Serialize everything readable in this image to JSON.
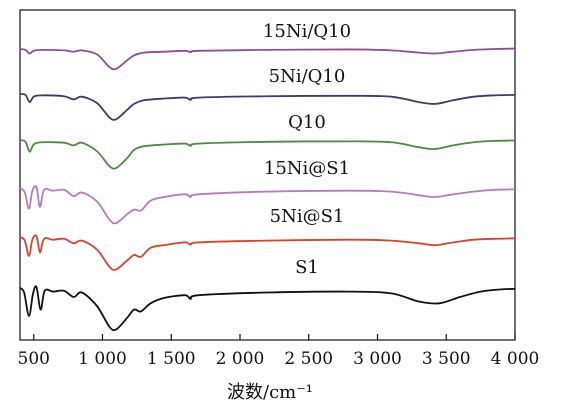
{
  "chart_data": {
    "type": "line",
    "xlabel": "波数/cm⁻¹",
    "ylabel": "",
    "xlim": [
      400,
      4000
    ],
    "xticks": [
      500,
      1000,
      1500,
      2000,
      2500,
      3000,
      3500,
      4000
    ],
    "xtick_labels": [
      "500",
      "1 000",
      "1 500",
      "2 000",
      "2 500",
      "3 000",
      "3 500",
      "4 000"
    ],
    "yticks_visible": false,
    "grid": false,
    "legend": "none",
    "series": [
      {
        "name": "15Ni/Q10",
        "color": "#8e4f94",
        "points": [
          [
            400,
            0.0
          ],
          [
            440,
            -0.02
          ],
          [
            470,
            -0.1
          ],
          [
            500,
            -0.04
          ],
          [
            560,
            -0.02
          ],
          [
            720,
            -0.03
          ],
          [
            790,
            -0.06
          ],
          [
            850,
            -0.03
          ],
          [
            960,
            -0.12
          ],
          [
            1050,
            -0.4
          ],
          [
            1100,
            -0.44
          ],
          [
            1180,
            -0.25
          ],
          [
            1230,
            -0.14
          ],
          [
            1300,
            -0.08
          ],
          [
            1450,
            -0.06
          ],
          [
            1600,
            -0.04
          ],
          [
            1640,
            -0.07
          ],
          [
            1700,
            -0.04
          ],
          [
            2200,
            -0.02
          ],
          [
            2800,
            -0.01
          ],
          [
            3100,
            -0.03
          ],
          [
            3300,
            -0.08
          ],
          [
            3420,
            -0.1
          ],
          [
            3550,
            -0.06
          ],
          [
            3700,
            -0.02
          ],
          [
            3850,
            0.0
          ],
          [
            4000,
            0.01
          ]
        ]
      },
      {
        "name": "5Ni/Q10",
        "color": "#3d3d6b",
        "points": [
          [
            400,
            0.0
          ],
          [
            440,
            -0.02
          ],
          [
            470,
            -0.18
          ],
          [
            500,
            -0.06
          ],
          [
            560,
            -0.03
          ],
          [
            720,
            -0.05
          ],
          [
            790,
            -0.12
          ],
          [
            850,
            -0.06
          ],
          [
            960,
            -0.2
          ],
          [
            1050,
            -0.52
          ],
          [
            1100,
            -0.56
          ],
          [
            1180,
            -0.35
          ],
          [
            1230,
            -0.22
          ],
          [
            1300,
            -0.14
          ],
          [
            1450,
            -0.1
          ],
          [
            1600,
            -0.08
          ],
          [
            1640,
            -0.13
          ],
          [
            1700,
            -0.08
          ],
          [
            2200,
            -0.05
          ],
          [
            2800,
            -0.04
          ],
          [
            3100,
            -0.06
          ],
          [
            3300,
            -0.18
          ],
          [
            3420,
            -0.22
          ],
          [
            3550,
            -0.14
          ],
          [
            3700,
            -0.06
          ],
          [
            3850,
            -0.03
          ],
          [
            4000,
            -0.02
          ]
        ]
      },
      {
        "name": "Q10",
        "color": "#4e8a45",
        "points": [
          [
            400,
            0.0
          ],
          [
            440,
            -0.04
          ],
          [
            470,
            -0.26
          ],
          [
            500,
            -0.1
          ],
          [
            560,
            -0.05
          ],
          [
            720,
            -0.06
          ],
          [
            790,
            -0.12
          ],
          [
            850,
            -0.06
          ],
          [
            960,
            -0.25
          ],
          [
            1050,
            -0.58
          ],
          [
            1100,
            -0.62
          ],
          [
            1180,
            -0.4
          ],
          [
            1230,
            -0.22
          ],
          [
            1300,
            -0.14
          ],
          [
            1450,
            -0.1
          ],
          [
            1600,
            -0.08
          ],
          [
            1640,
            -0.13
          ],
          [
            1700,
            -0.08
          ],
          [
            2200,
            -0.04
          ],
          [
            2800,
            -0.03
          ],
          [
            3100,
            -0.05
          ],
          [
            3300,
            -0.16
          ],
          [
            3420,
            -0.2
          ],
          [
            3550,
            -0.12
          ],
          [
            3700,
            -0.05
          ],
          [
            3850,
            -0.02
          ],
          [
            4000,
            -0.01
          ]
        ]
      },
      {
        "name": "15Ni@S1",
        "color": "#b87abd",
        "points": [
          [
            400,
            0.0
          ],
          [
            435,
            -0.1
          ],
          [
            465,
            -0.46
          ],
          [
            490,
            -0.06
          ],
          [
            520,
            0.02
          ],
          [
            545,
            -0.42
          ],
          [
            575,
            -0.04
          ],
          [
            640,
            -0.06
          ],
          [
            720,
            -0.04
          ],
          [
            790,
            -0.18
          ],
          [
            850,
            -0.1
          ],
          [
            960,
            -0.3
          ],
          [
            1050,
            -0.7
          ],
          [
            1100,
            -0.78
          ],
          [
            1180,
            -0.58
          ],
          [
            1230,
            -0.48
          ],
          [
            1280,
            -0.5
          ],
          [
            1350,
            -0.28
          ],
          [
            1450,
            -0.2
          ],
          [
            1600,
            -0.14
          ],
          [
            1640,
            -0.2
          ],
          [
            1700,
            -0.14
          ],
          [
            2200,
            -0.08
          ],
          [
            2800,
            -0.06
          ],
          [
            3100,
            -0.08
          ],
          [
            3300,
            -0.16
          ],
          [
            3420,
            -0.2
          ],
          [
            3550,
            -0.14
          ],
          [
            3700,
            -0.08
          ],
          [
            3850,
            -0.04
          ],
          [
            4000,
            -0.03
          ]
        ]
      },
      {
        "name": "5Ni@S1",
        "color": "#d4452e",
        "points": [
          [
            400,
            0.0
          ],
          [
            435,
            -0.08
          ],
          [
            465,
            -0.42
          ],
          [
            490,
            -0.06
          ],
          [
            520,
            0.02
          ],
          [
            545,
            -0.34
          ],
          [
            575,
            -0.04
          ],
          [
            640,
            -0.06
          ],
          [
            720,
            -0.04
          ],
          [
            790,
            -0.14
          ],
          [
            850,
            -0.08
          ],
          [
            960,
            -0.28
          ],
          [
            1050,
            -0.66
          ],
          [
            1100,
            -0.72
          ],
          [
            1180,
            -0.52
          ],
          [
            1230,
            -0.4
          ],
          [
            1280,
            -0.44
          ],
          [
            1350,
            -0.24
          ],
          [
            1450,
            -0.18
          ],
          [
            1600,
            -0.12
          ],
          [
            1640,
            -0.17
          ],
          [
            1700,
            -0.12
          ],
          [
            2200,
            -0.08
          ],
          [
            2800,
            -0.06
          ],
          [
            3100,
            -0.08
          ],
          [
            3300,
            -0.14
          ],
          [
            3420,
            -0.18
          ],
          [
            3550,
            -0.12
          ],
          [
            3700,
            -0.06
          ],
          [
            3850,
            -0.04
          ],
          [
            4000,
            -0.03
          ]
        ]
      },
      {
        "name": "S1",
        "color": "#111111",
        "points": [
          [
            400,
            0.0
          ],
          [
            430,
            -0.1
          ],
          [
            465,
            -0.62
          ],
          [
            495,
            -0.12
          ],
          [
            520,
            0.02
          ],
          [
            550,
            -0.48
          ],
          [
            580,
            -0.06
          ],
          [
            640,
            -0.08
          ],
          [
            720,
            -0.06
          ],
          [
            790,
            -0.2
          ],
          [
            850,
            -0.1
          ],
          [
            960,
            -0.4
          ],
          [
            1050,
            -0.86
          ],
          [
            1100,
            -0.92
          ],
          [
            1180,
            -0.66
          ],
          [
            1230,
            -0.48
          ],
          [
            1280,
            -0.52
          ],
          [
            1350,
            -0.34
          ],
          [
            1450,
            -0.22
          ],
          [
            1600,
            -0.16
          ],
          [
            1640,
            -0.24
          ],
          [
            1700,
            -0.16
          ],
          [
            2200,
            -0.1
          ],
          [
            2800,
            -0.08
          ],
          [
            3100,
            -0.12
          ],
          [
            3300,
            -0.3
          ],
          [
            3450,
            -0.34
          ],
          [
            3600,
            -0.2
          ],
          [
            3750,
            -0.08
          ],
          [
            3900,
            -0.03
          ],
          [
            4000,
            -0.02
          ]
        ]
      }
    ]
  }
}
